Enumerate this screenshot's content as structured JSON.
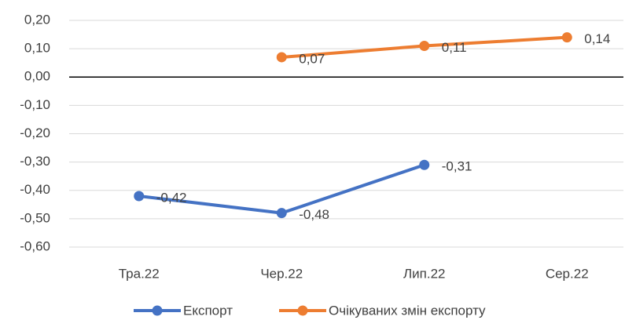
{
  "chart_data": {
    "type": "line",
    "categories": [
      "Тра.22",
      "Чер.22",
      "Лип.22",
      "Сер.22"
    ],
    "series": [
      {
        "name": "Експорт",
        "color": "#4472c4",
        "values": [
          -0.42,
          -0.48,
          -0.31,
          null
        ],
        "value_labels": [
          "-0,42",
          "-0,48",
          "-0,31",
          null
        ]
      },
      {
        "name": "Очікуваних змін експорту",
        "color": "#ed7d31",
        "values": [
          null,
          0.07,
          0.11,
          0.14
        ],
        "value_labels": [
          null,
          "0,07",
          "0,11",
          "0,14"
        ]
      }
    ],
    "ylim": [
      -0.6,
      0.2
    ],
    "yticks": [
      {
        "value": -0.6,
        "label": "-0,60"
      },
      {
        "value": -0.5,
        "label": "-0,50"
      },
      {
        "value": -0.4,
        "label": "-0,40"
      },
      {
        "value": -0.3,
        "label": "-0,30"
      },
      {
        "value": -0.2,
        "label": "-0,20"
      },
      {
        "value": -0.1,
        "label": "-0,10"
      },
      {
        "value": 0,
        "label": "0,00"
      },
      {
        "value": 0.1,
        "label": "0,10"
      },
      {
        "value": 0.2,
        "label": "0,20"
      }
    ],
    "grid": true,
    "legend": "bottom"
  }
}
